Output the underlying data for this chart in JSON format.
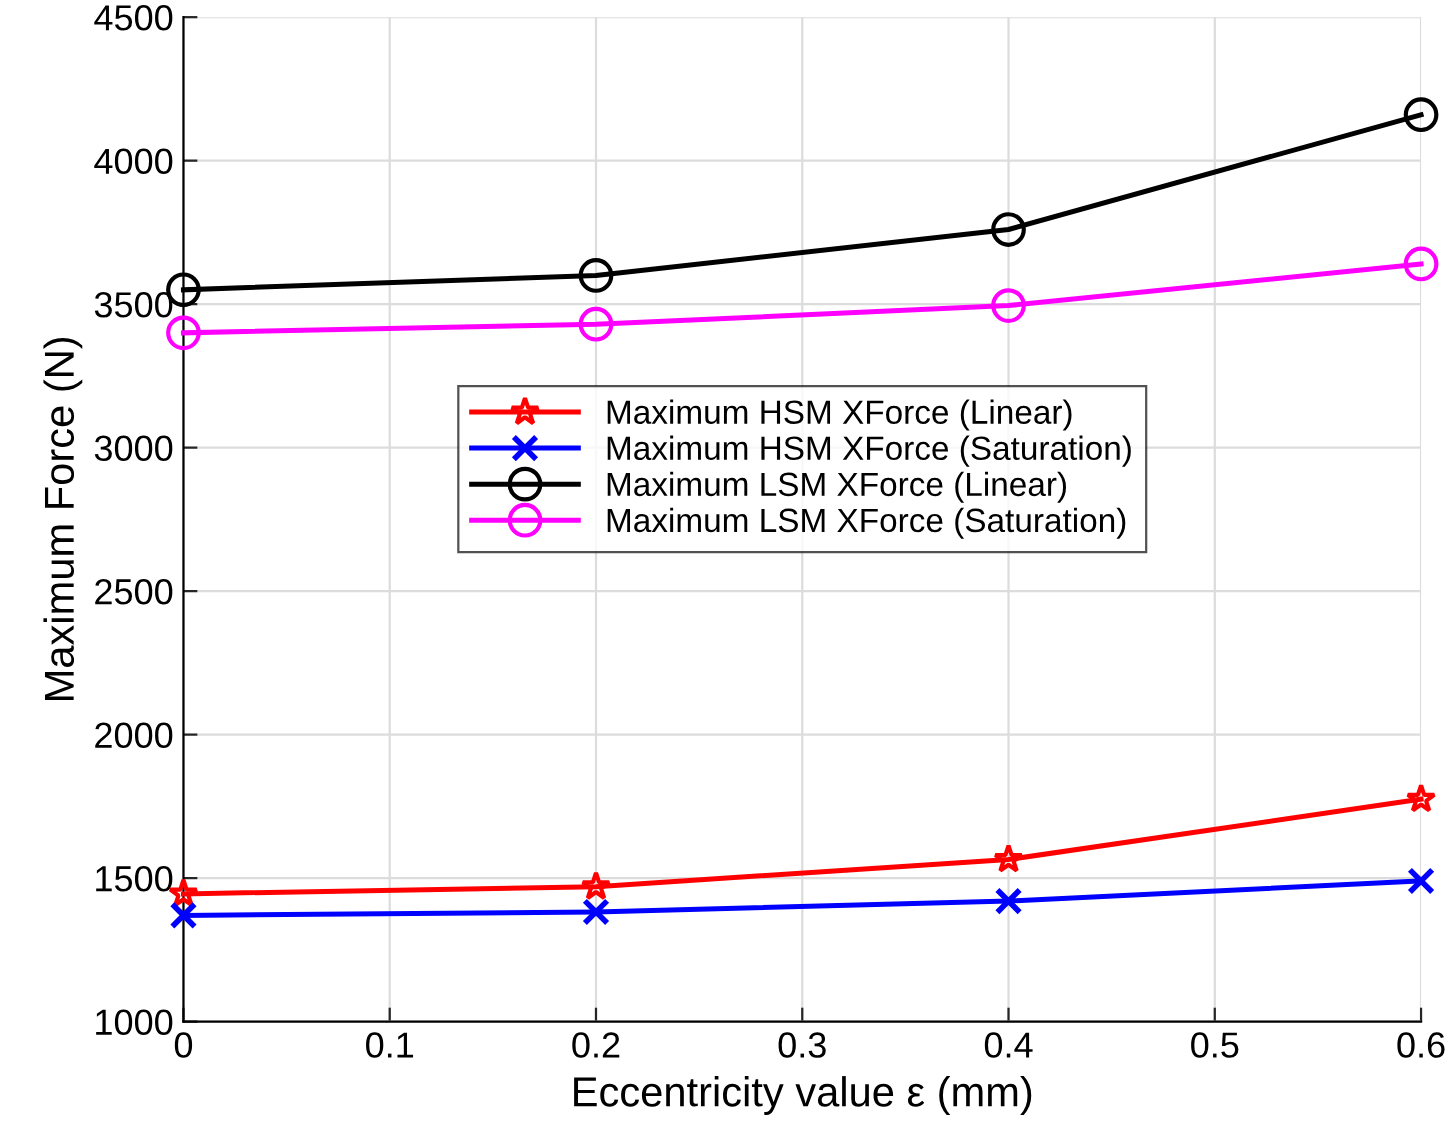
{
  "chart_data": {
    "type": "line",
    "xlabel": "Eccentricity value ε (mm)",
    "ylabel": "Maximum Force (N)",
    "x": [
      0,
      0.2,
      0.4,
      0.6
    ],
    "series": [
      {
        "name": "Maximum HSM XForce (Linear)",
        "color": "#ff0000",
        "marker": "star",
        "values": [
          1445,
          1470,
          1565,
          1775
        ]
      },
      {
        "name": "Maximum HSM XForce (Saturation)",
        "color": "#0000ff",
        "marker": "cross",
        "values": [
          1370,
          1382,
          1420,
          1490
        ]
      },
      {
        "name": "Maximum LSM XForce (Linear)",
        "color": "#000000",
        "marker": "circle",
        "values": [
          3550,
          3600,
          3760,
          4160
        ]
      },
      {
        "name": "Maximum LSM XForce (Saturation)",
        "color": "#ff00ff",
        "marker": "circle",
        "values": [
          3400,
          3430,
          3495,
          3640
        ]
      }
    ],
    "xlim": [
      0,
      0.6
    ],
    "xticks": [
      0,
      0.1,
      0.2,
      0.3,
      0.4,
      0.5,
      0.6
    ],
    "ylim": [
      1000,
      4500
    ],
    "yticks": [
      1000,
      1500,
      2000,
      2500,
      3000,
      3500,
      4000,
      4500
    ],
    "grid": true,
    "legend": "center"
  }
}
